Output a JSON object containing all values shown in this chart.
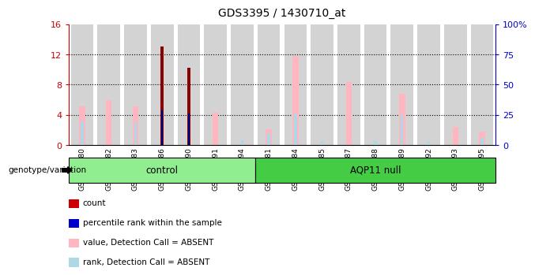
{
  "title": "GDS3395 / 1430710_at",
  "samples": [
    "GSM267980",
    "GSM267982",
    "GSM267983",
    "GSM267986",
    "GSM267990",
    "GSM267991",
    "GSM267994",
    "GSM267981",
    "GSM267984",
    "GSM267985",
    "GSM267987",
    "GSM267988",
    "GSM267989",
    "GSM267992",
    "GSM267993",
    "GSM267995"
  ],
  "count_values": [
    0,
    0,
    0,
    13.0,
    10.2,
    0,
    0,
    0,
    0,
    0,
    0,
    0,
    0,
    0,
    0,
    0
  ],
  "percentile_values": [
    0,
    0,
    0,
    28.75,
    26.25,
    0,
    0,
    0,
    0,
    0,
    0,
    0,
    0,
    0,
    0,
    0
  ],
  "value_absent": [
    5.1,
    6.0,
    5.1,
    0,
    0,
    4.3,
    0,
    2.1,
    11.8,
    0,
    8.4,
    0,
    6.8,
    0,
    2.4,
    1.8
  ],
  "rank_absent": [
    3.2,
    0,
    3.0,
    0,
    0,
    0,
    0.7,
    1.6,
    4.1,
    0.5,
    0,
    0.5,
    4.0,
    0.4,
    0,
    1.0
  ],
  "groups": [
    {
      "label": "control",
      "start": 0,
      "end": 7
    },
    {
      "label": "AQP11 null",
      "start": 7,
      "end": 16
    }
  ],
  "ylim_left": [
    0,
    16
  ],
  "ylim_right": [
    0,
    100
  ],
  "yticks_left": [
    0,
    4,
    8,
    12,
    16
  ],
  "ytick_labels_left": [
    "0",
    "4",
    "8",
    "12",
    "16"
  ],
  "yticks_right": [
    0,
    25,
    50,
    75,
    100
  ],
  "ytick_labels_right": [
    "0",
    "25",
    "50",
    "75",
    "100%"
  ],
  "left_axis_color": "#CC0000",
  "right_axis_color": "#0000CC",
  "count_color": "#8B0000",
  "percentile_color": "#00008B",
  "value_absent_color": "#FFB6C1",
  "rank_absent_color": "#ADD8E6",
  "bar_bg_color": "#D3D3D3",
  "group_row_color": "#90EE90",
  "group_row_color2": "#44CC44",
  "genotype_label": "genotype/variation",
  "legend_items": [
    {
      "color": "#CC0000",
      "label": "count"
    },
    {
      "color": "#0000CC",
      "label": "percentile rank within the sample"
    },
    {
      "color": "#FFB6C1",
      "label": "value, Detection Call = ABSENT"
    },
    {
      "color": "#ADD8E6",
      "label": "rank, Detection Call = ABSENT"
    }
  ],
  "grid_lines": [
    4,
    8,
    12
  ],
  "fig_bg": "#ffffff"
}
